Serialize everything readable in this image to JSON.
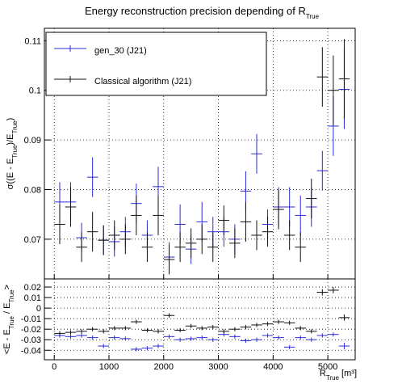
{
  "chart_data": [
    {
      "type": "errorbar",
      "title": [
        "Energy reconstruction precision depending of R",
        "True"
      ],
      "ylabel": [
        "σ((E - E",
        "True",
        ")/E",
        "True",
        ")"
      ],
      "x": [
        100,
        300,
        500,
        700,
        900,
        1100,
        1300,
        1500,
        1700,
        1900,
        2100,
        2300,
        2500,
        2700,
        2900,
        3100,
        3300,
        3500,
        3700,
        3900,
        4100,
        4300,
        4500,
        4700,
        4900,
        5100,
        5300
      ],
      "xerr": 100,
      "xlim": [
        -180,
        5500
      ],
      "xticks": [
        0,
        1000,
        2000,
        3000,
        4000,
        5000
      ],
      "ylim": [
        0.062,
        0.1125
      ],
      "yticks": [
        0.07,
        0.08,
        0.09,
        0.1,
        0.11
      ],
      "grid": true,
      "legend": "upper left",
      "series": [
        {
          "name": "gen_30 (J21)",
          "color": "#2b2bd6",
          "values": [
            0.0775,
            0.0775,
            0.0703,
            0.0825,
            0.0698,
            0.0695,
            0.0715,
            0.0772,
            0.0708,
            0.0806,
            0.0664,
            0.073,
            0.068,
            0.0735,
            0.0715,
            0.0715,
            0.07,
            0.0797,
            0.0872,
            0.073,
            0.0765,
            0.0765,
            0.0748,
            0.0765,
            0.0838,
            0.0928,
            0.1002
          ],
          "errors": [
            0.004,
            0.004,
            0.003,
            0.004,
            0.003,
            0.003,
            0.003,
            0.004,
            0.003,
            0.004,
            0.003,
            0.004,
            0.003,
            0.004,
            0.003,
            0.003,
            0.003,
            0.004,
            0.004,
            0.003,
            0.004,
            0.004,
            0.004,
            0.004,
            0.004,
            0.006,
            0.008
          ]
        },
        {
          "name": "Classical algorithm (J21)",
          "color": "#111111",
          "values": [
            0.073,
            0.0765,
            0.0684,
            0.0715,
            0.0698,
            0.0708,
            0.07,
            0.0748,
            0.0684,
            0.0748,
            0.0659,
            0.0684,
            0.0692,
            0.07,
            0.0684,
            0.0738,
            0.0692,
            0.0735,
            0.0708,
            0.0715,
            0.076,
            0.0708,
            0.0684,
            0.0782,
            0.1027,
            0.1,
            0.1023
          ],
          "errors": [
            0.004,
            0.004,
            0.003,
            0.004,
            0.003,
            0.003,
            0.003,
            0.004,
            0.003,
            0.004,
            0.003,
            0.003,
            0.003,
            0.003,
            0.003,
            0.003,
            0.003,
            0.004,
            0.003,
            0.003,
            0.004,
            0.003,
            0.003,
            0.004,
            0.006,
            0.007,
            0.008
          ]
        }
      ]
    },
    {
      "type": "errorbar",
      "ylabel": [
        "<E - E",
        "True",
        " / E",
        "True",
        ">"
      ],
      "xlabel": [
        "R",
        "True",
        " [m³]"
      ],
      "x": [
        100,
        300,
        500,
        700,
        900,
        1100,
        1300,
        1500,
        1700,
        1900,
        2100,
        2300,
        2500,
        2700,
        2900,
        3100,
        3300,
        3500,
        3700,
        3900,
        4100,
        4300,
        4500,
        4700,
        4900,
        5100,
        5300
      ],
      "xerr": 100,
      "xlim": [
        -180,
        5500
      ],
      "xticks": [
        0,
        1000,
        2000,
        3000,
        4000,
        5000
      ],
      "ylim": [
        -0.049,
        0.0277
      ],
      "yticks": [
        0.02,
        0.01,
        0,
        -0.01,
        -0.02,
        -0.03,
        -0.04
      ],
      "grid": true,
      "series": [
        {
          "name": "gen_30 (J21)",
          "color": "#2b2bd6",
          "values": [
            -0.026,
            -0.027,
            -0.026,
            -0.028,
            -0.036,
            -0.028,
            -0.029,
            -0.039,
            -0.038,
            -0.036,
            -0.027,
            -0.03,
            -0.029,
            -0.028,
            -0.03,
            -0.025,
            -0.027,
            -0.031,
            -0.03,
            -0.026,
            -0.028,
            -0.037,
            -0.028,
            -0.03,
            -0.026,
            -0.025,
            -0.036
          ],
          "errors": [
            0.002,
            0.002,
            0.002,
            0.002,
            0.002,
            0.002,
            0.002,
            0.002,
            0.002,
            0.002,
            0.002,
            0.002,
            0.002,
            0.002,
            0.002,
            0.002,
            0.002,
            0.002,
            0.002,
            0.002,
            0.002,
            0.002,
            0.002,
            0.002,
            0.002,
            0.002,
            0.003
          ]
        },
        {
          "name": "Classical algorithm (J21)",
          "color": "#111111",
          "values": [
            -0.024,
            -0.023,
            -0.022,
            -0.02,
            -0.022,
            -0.019,
            -0.019,
            -0.013,
            -0.021,
            -0.022,
            -0.007,
            -0.021,
            -0.017,
            -0.019,
            -0.018,
            -0.022,
            -0.02,
            -0.018,
            -0.016,
            -0.015,
            -0.013,
            -0.014,
            -0.019,
            -0.022,
            0.015,
            0.017,
            -0.009
          ],
          "errors": [
            0.002,
            0.002,
            0.002,
            0.002,
            0.002,
            0.002,
            0.002,
            0.002,
            0.002,
            0.002,
            0.002,
            0.002,
            0.002,
            0.002,
            0.002,
            0.002,
            0.002,
            0.002,
            0.002,
            0.002,
            0.002,
            0.002,
            0.002,
            0.002,
            0.003,
            0.003,
            0.003
          ]
        }
      ]
    }
  ]
}
